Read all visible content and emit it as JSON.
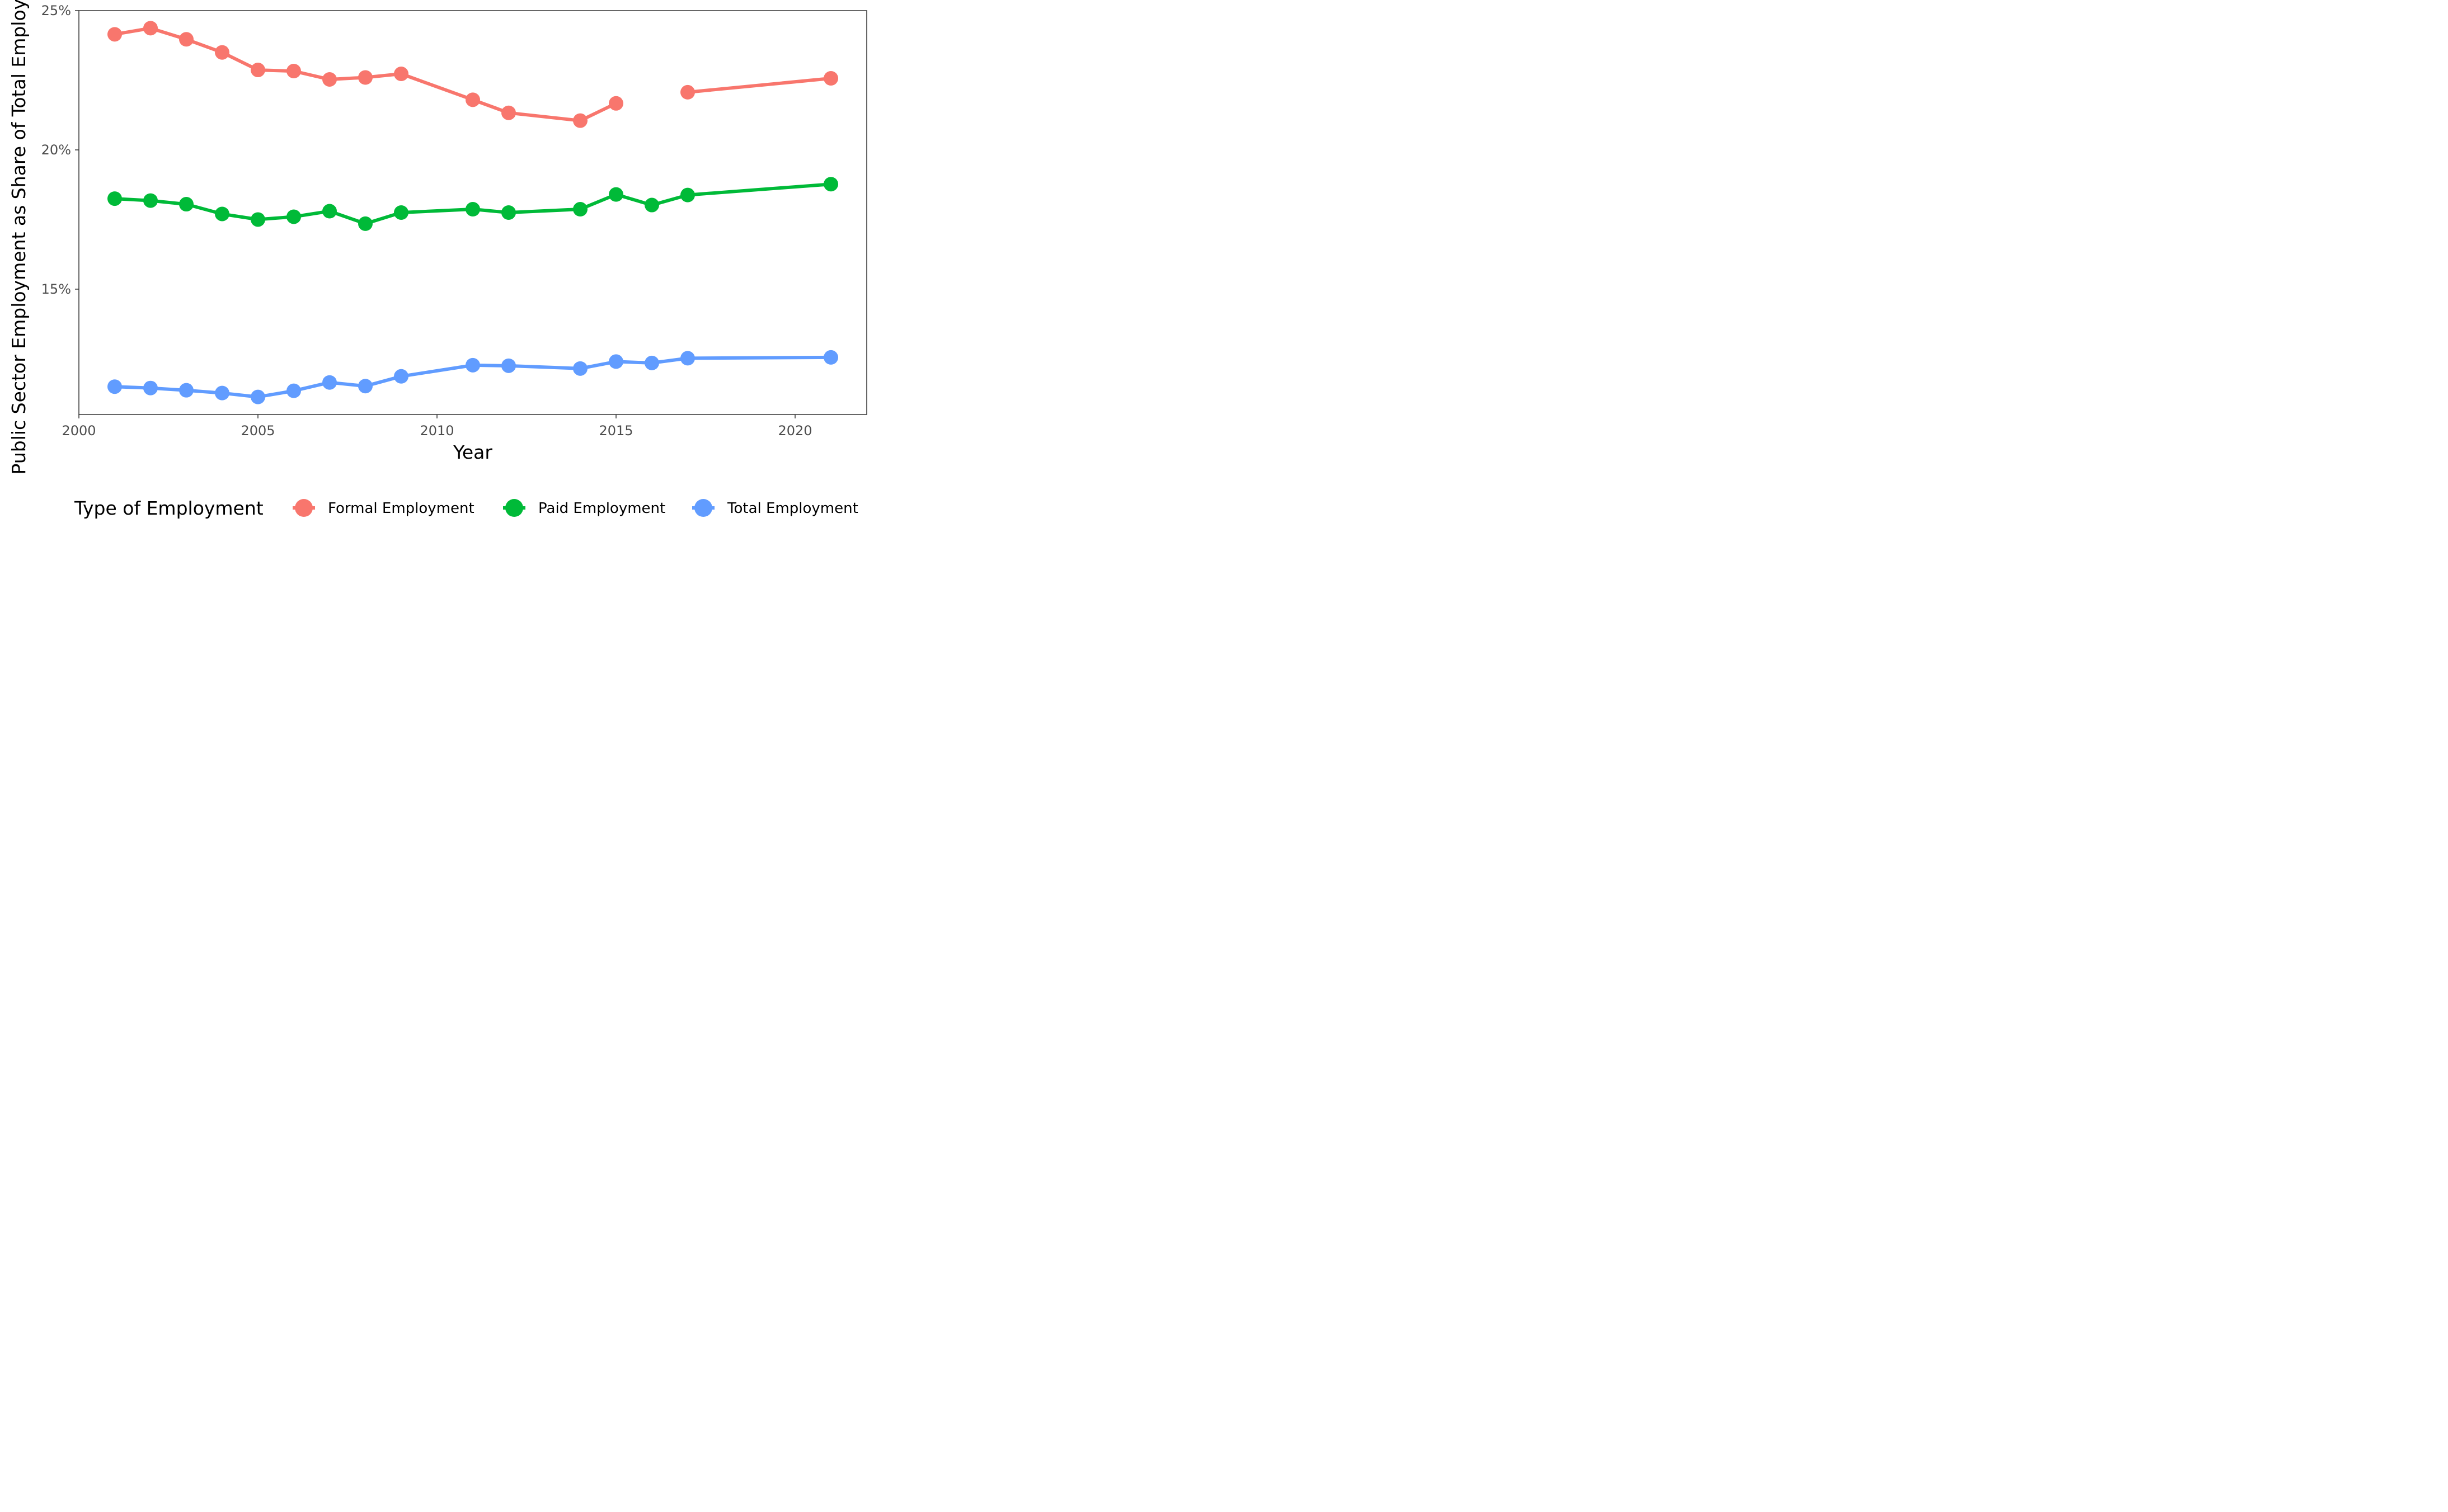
{
  "chart_data": {
    "type": "line",
    "xlabel": "Year",
    "ylabel": "Public Sector Employment as Share of Total Employment",
    "xlim": [
      2000,
      2022
    ],
    "ylim": [
      10.5,
      25
    ],
    "x_ticks": [
      {
        "value": 2000,
        "label": "2000"
      },
      {
        "value": 2005,
        "label": "2005"
      },
      {
        "value": 2010,
        "label": "2010"
      },
      {
        "value": 2015,
        "label": "2015"
      },
      {
        "value": 2020,
        "label": "2020"
      }
    ],
    "y_ticks": [
      {
        "value": 15,
        "label": "15%"
      },
      {
        "value": 20,
        "label": "20%"
      },
      {
        "value": 25,
        "label": "25%"
      }
    ],
    "grid": false,
    "legend": {
      "title": "Type of Employment",
      "position": "bottom"
    },
    "series": [
      {
        "name": "Formal Employment",
        "color": "#F8766D",
        "segments": [
          {
            "x": [
              2001,
              2002,
              2003,
              2004,
              2005,
              2006,
              2007,
              2008,
              2009,
              2011,
              2012,
              2014,
              2015
            ],
            "y": [
              24.15,
              24.37,
              23.97,
              23.5,
              22.87,
              22.83,
              22.53,
              22.6,
              22.73,
              21.8,
              21.33,
              21.05,
              21.67
            ]
          },
          {
            "x": [
              2017,
              2021
            ],
            "y": [
              22.07,
              22.57
            ]
          }
        ]
      },
      {
        "name": "Paid Employment",
        "color": "#00BA38",
        "segments": [
          {
            "x": [
              2001,
              2002,
              2003,
              2004,
              2005,
              2006,
              2007,
              2008,
              2009,
              2011,
              2012,
              2014,
              2015,
              2016,
              2017,
              2021
            ],
            "y": [
              18.25,
              18.18,
              18.05,
              17.7,
              17.5,
              17.6,
              17.8,
              17.35,
              17.75,
              17.87,
              17.75,
              17.87,
              18.4,
              18.02,
              18.38,
              18.77
            ]
          }
        ]
      },
      {
        "name": "Total Employment",
        "color": "#619CFF",
        "segments": [
          {
            "x": [
              2001,
              2002,
              2003,
              2004,
              2005,
              2006,
              2007,
              2008,
              2009,
              2011,
              2012,
              2014,
              2015,
              2016,
              2017,
              2021
            ],
            "y": [
              11.5,
              11.45,
              11.37,
              11.27,
              11.13,
              11.35,
              11.65,
              11.52,
              11.87,
              12.27,
              12.25,
              12.15,
              12.4,
              12.35,
              12.52,
              12.55
            ]
          }
        ]
      }
    ]
  }
}
